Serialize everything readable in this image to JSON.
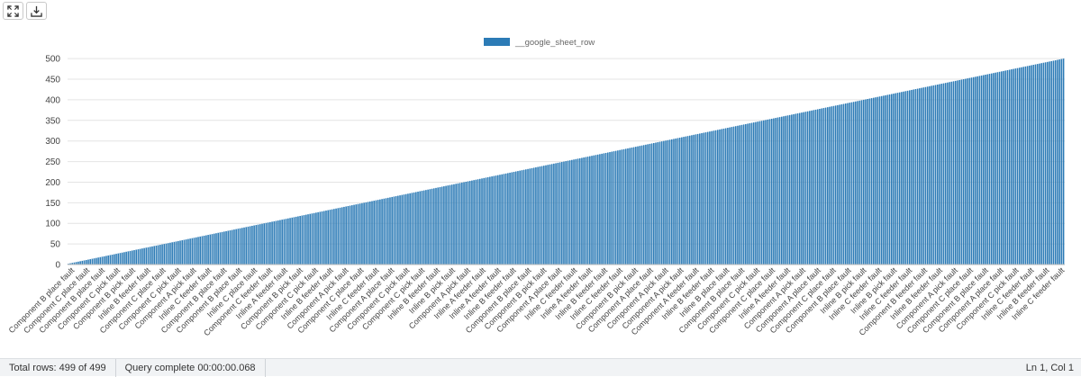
{
  "toolbar": {
    "expand_icon": "expand-icon",
    "download_icon": "download-icon"
  },
  "chart_data": {
    "type": "bar",
    "legend": "__google_sheet_row",
    "legend_position": "top-center",
    "series_name": "__google_sheet_row",
    "color": "#2c7bb6",
    "grid": true,
    "ylim": [
      0,
      520
    ],
    "yticks": [
      0,
      50,
      100,
      150,
      200,
      250,
      300,
      350,
      400,
      450,
      500
    ],
    "values_rule": "bar i (1-based) has value i + 1; values run from 2 to 500",
    "count": 499,
    "value_start": 2,
    "value_end": 500,
    "visible_tick_labels": [
      "Component B place fault",
      "Component C place fault",
      "Component B place fault",
      "Component C pick fault",
      "Component B pick fault",
      "Inline B feeder fault",
      "Component C place fault",
      "Component C pick fault",
      "Component A pick fault",
      "Inline C feeder fault",
      "Component B place fault",
      "Component B place fault",
      "Inline C place fault",
      "Component C feeder fault",
      "Inline A feeder fault",
      "Component B pick fault",
      "Component C pick fault",
      "Inline B feeder fault",
      "Component A pick fault",
      "Component C place fault",
      "Inline C feeder fault",
      "Component A place fault",
      "Component C pick fault",
      "Component C pick fault",
      "Inline B feeder fault",
      "Inline B pick fault",
      "Component A pick fault",
      "Inline A feeder fault",
      "Inline A feeder fault",
      "Inline B feeder fault",
      "Component B place fault",
      "Component B pick fault",
      "Component A place fault",
      "Inline C feeder fault",
      "Inline A feeder fault",
      "Inline B feeder fault",
      "Inline C feeder fault",
      "Component B pick fault",
      "Component A place fault",
      "Component A pick fault",
      "Component A pick fault",
      "Component A feeder fault",
      "Inline B feeder fault",
      "Inline B place fault",
      "Component B place fault",
      "Component C pick fault",
      "Component C place fault",
      "Inline A feeder fault",
      "Component A pick fault",
      "Component A place fault",
      "Component C place fault",
      "Component B place fault",
      "Inline B pick fault",
      "Inline C feeder fault",
      "Inline B pick fault",
      "Inline C feeder fault",
      "Component B feeder fault",
      "Inline B feeder fault",
      "Component A pick fault",
      "Component C place fault",
      "Component B place fault",
      "Component A place fault",
      "Component C pick fault",
      "Inline C feeder fault",
      "Inline B feeder fault",
      "Inline C feeder fault"
    ]
  },
  "status": {
    "total_rows": "Total rows: 499 of 499",
    "query": "Query complete 00:00:00.068",
    "position": "Ln 1, Col 1"
  }
}
